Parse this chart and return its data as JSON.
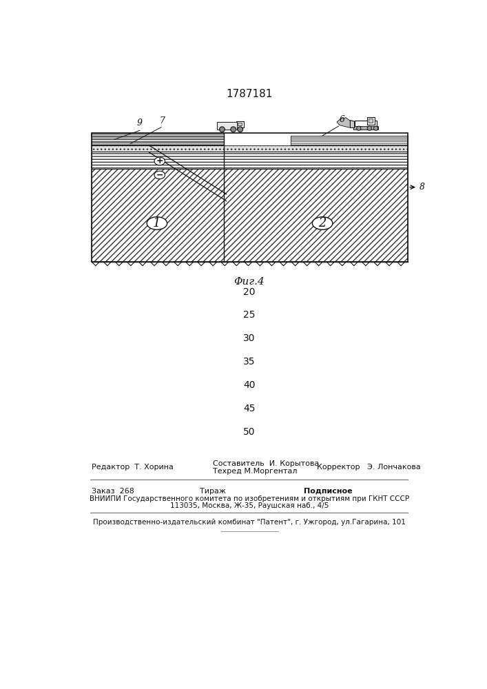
{
  "title": "1787181",
  "fig_label": "Φиг.4",
  "numbers": [
    [
      "20",
      395
    ],
    [
      "25",
      438
    ],
    [
      "30",
      482
    ],
    [
      "35",
      526
    ],
    [
      "40",
      570
    ],
    [
      "45",
      614
    ],
    [
      "50",
      658
    ]
  ],
  "editor_label": "Редактор  Т. Хорина",
  "composer_label": "Составитель  И. Корытова",
  "techred_label": "Техред М.Моргентал",
  "corrector_label": "Корректор   Э. Лончакова",
  "order_label": "Заказ  268",
  "tirazh_label": "Тираж",
  "podpisnoe_label": "Подписное",
  "vniippi_label": "ВНИИПИ Государственного комитета по изобретениям и открытиям при ГКНТ СССР",
  "address_label": "113035, Москва, Ж-35, Раушская наб., 4/5",
  "proizv_label": "Производственно-издательский комбинат \"Патент\", г. Ужгород, ул.Гагарина, 101",
  "lbl9": "9",
  "lbl7": "7",
  "lbl6": "6",
  "lbl8": "8",
  "lbl1": "1",
  "lbl2": "2"
}
